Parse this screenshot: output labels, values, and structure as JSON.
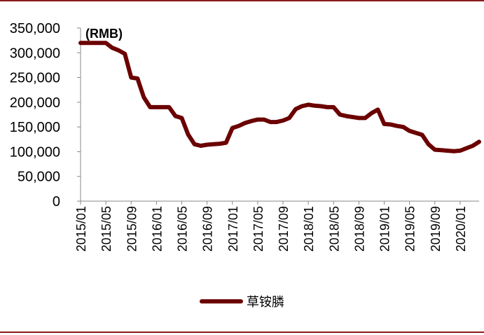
{
  "colors": {
    "frame": "#8b1a1a",
    "series": "#6b0000",
    "axis": "#888888",
    "text": "#000000"
  },
  "chart_data": {
    "type": "line",
    "unit_label": "(RMB)",
    "ylim": [
      0,
      350000
    ],
    "y_ticks": [
      0,
      50000,
      100000,
      150000,
      200000,
      250000,
      300000,
      350000
    ],
    "y_tick_labels": [
      "0",
      "50,000",
      "100,000",
      "150,000",
      "200,000",
      "250,000",
      "300,000",
      "350,000"
    ],
    "x_range": [
      "2015/01",
      "2020/04"
    ],
    "x_ticks": [
      "2015/01",
      "2015/05",
      "2015/09",
      "2016/01",
      "2016/05",
      "2016/09",
      "2017/01",
      "2017/05",
      "2017/09",
      "2018/01",
      "2018/05",
      "2018/09",
      "2019/01",
      "2019/05",
      "2019/09",
      "2020/01"
    ],
    "grid": false,
    "legend_position": "bottom",
    "series": [
      {
        "name": "草铵膦",
        "x": [
          "2015/01",
          "2015/02",
          "2015/03",
          "2015/04",
          "2015/05",
          "2015/06",
          "2015/07",
          "2015/08",
          "2015/09",
          "2015/10",
          "2015/11",
          "2015/12",
          "2016/01",
          "2016/02",
          "2016/03",
          "2016/04",
          "2016/05",
          "2016/06",
          "2016/07",
          "2016/08",
          "2016/09",
          "2016/10",
          "2016/11",
          "2016/12",
          "2017/01",
          "2017/02",
          "2017/03",
          "2017/04",
          "2017/05",
          "2017/06",
          "2017/07",
          "2017/08",
          "2017/09",
          "2017/10",
          "2017/11",
          "2017/12",
          "2018/01",
          "2018/02",
          "2018/03",
          "2018/04",
          "2018/05",
          "2018/06",
          "2018/07",
          "2018/08",
          "2018/09",
          "2018/10",
          "2018/11",
          "2018/12",
          "2019/01",
          "2019/02",
          "2019/03",
          "2019/04",
          "2019/05",
          "2019/06",
          "2019/07",
          "2019/08",
          "2019/09",
          "2019/10",
          "2019/11",
          "2019/12",
          "2020/01",
          "2020/02",
          "2020/03",
          "2020/04"
        ],
        "values": [
          320000,
          320000,
          320000,
          320000,
          320000,
          310000,
          305000,
          298000,
          250000,
          248000,
          210000,
          190000,
          190000,
          190000,
          190000,
          172000,
          168000,
          135000,
          115000,
          112000,
          114000,
          115000,
          116000,
          118000,
          148000,
          152000,
          158000,
          162000,
          165000,
          165000,
          160000,
          160000,
          163000,
          168000,
          186000,
          192000,
          195000,
          193000,
          192000,
          190000,
          190000,
          175000,
          172000,
          170000,
          168000,
          168000,
          178000,
          185000,
          156000,
          155000,
          152000,
          150000,
          142000,
          138000,
          134000,
          115000,
          104000,
          103000,
          102000,
          101000,
          102000,
          107000,
          112000,
          120000
        ]
      }
    ]
  }
}
